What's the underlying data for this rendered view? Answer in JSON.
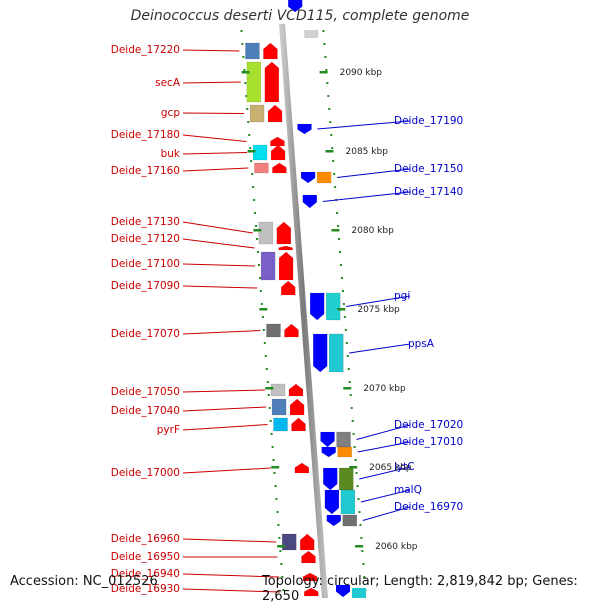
{
  "title": "Deinococcus deserti VCD115, complete genome",
  "footer": {
    "accession": "Accession: NC_012526",
    "summary": "Topology: circular; Length: 2,819,842 bp; Genes: 2,650"
  },
  "colors": {
    "forward_arrow": "#ff0000",
    "reverse_arrow": "#0000ff",
    "left_label": "#cc0000",
    "right_label": "#0000cc",
    "ticks": "#228b22",
    "backbone": "#909090"
  },
  "scale_labels": [
    {
      "text": "2090 kbp",
      "kbp": 2090
    },
    {
      "text": "2085 kbp",
      "kbp": 2085
    },
    {
      "text": "2080 kbp",
      "kbp": 2080
    },
    {
      "text": "2075 kbp",
      "kbp": 2075
    },
    {
      "text": "2070 kbp",
      "kbp": 2070
    },
    {
      "text": "2065 kbp",
      "kbp": 2065
    },
    {
      "text": "2060 kbp",
      "kbp": 2060
    }
  ],
  "left_genes": [
    {
      "label": "Deide_17220",
      "box_color": "#4f7fb8"
    },
    {
      "label": "secA",
      "box_color": "#a8e030"
    },
    {
      "label": "gcp",
      "box_color": "#c8b070"
    },
    {
      "label": "Deide_17180",
      "box_color": null
    },
    {
      "label": "buk",
      "box_color": "#00e0f0"
    },
    {
      "label": "Deide_17160",
      "box_color": "#f08080"
    },
    {
      "label": "Deide_17130",
      "box_color": "#c0c0c0"
    },
    {
      "label": "Deide_17120",
      "box_color": null
    },
    {
      "label": "Deide_17100",
      "box_color": "#7b5fc8"
    },
    {
      "label": "Deide_17090",
      "box_color": null
    },
    {
      "label": "Deide_17070",
      "box_color": "#707070"
    },
    {
      "label": "Deide_17050",
      "box_color": "#c0c0c0"
    },
    {
      "label": "Deide_17040",
      "box_color": "#4f7fb8"
    },
    {
      "label": "pyrF",
      "box_color": "#00b8f0"
    },
    {
      "label": "Deide_17000",
      "box_color": null
    },
    {
      "label": "Deide_16960",
      "box_color": "#4a4a80"
    },
    {
      "label": "Deide_16950",
      "box_color": null
    },
    {
      "label": "Deide_16940",
      "box_color": null
    },
    {
      "label": "Deide_16930",
      "box_color": null
    }
  ],
  "right_genes": [
    {
      "label": "Deide_17190",
      "box_color": null
    },
    {
      "label": "Deide_17150",
      "box_color": "#ff8c00"
    },
    {
      "label": "Deide_17140",
      "box_color": null
    },
    {
      "label": "pgi",
      "box_color": "#20d0d0"
    },
    {
      "label": "ppsA",
      "box_color": "#20c8d0"
    },
    {
      "label": "Deide_17020",
      "box_color": "#808080"
    },
    {
      "label": "Deide_17010",
      "box_color": "#ff8c00"
    },
    {
      "label": "lytC",
      "box_color": "#5a8a20"
    },
    {
      "label": "malQ",
      "box_color": "#20c8d0"
    },
    {
      "label": "Deide_16970",
      "box_color": "#707070"
    }
  ]
}
